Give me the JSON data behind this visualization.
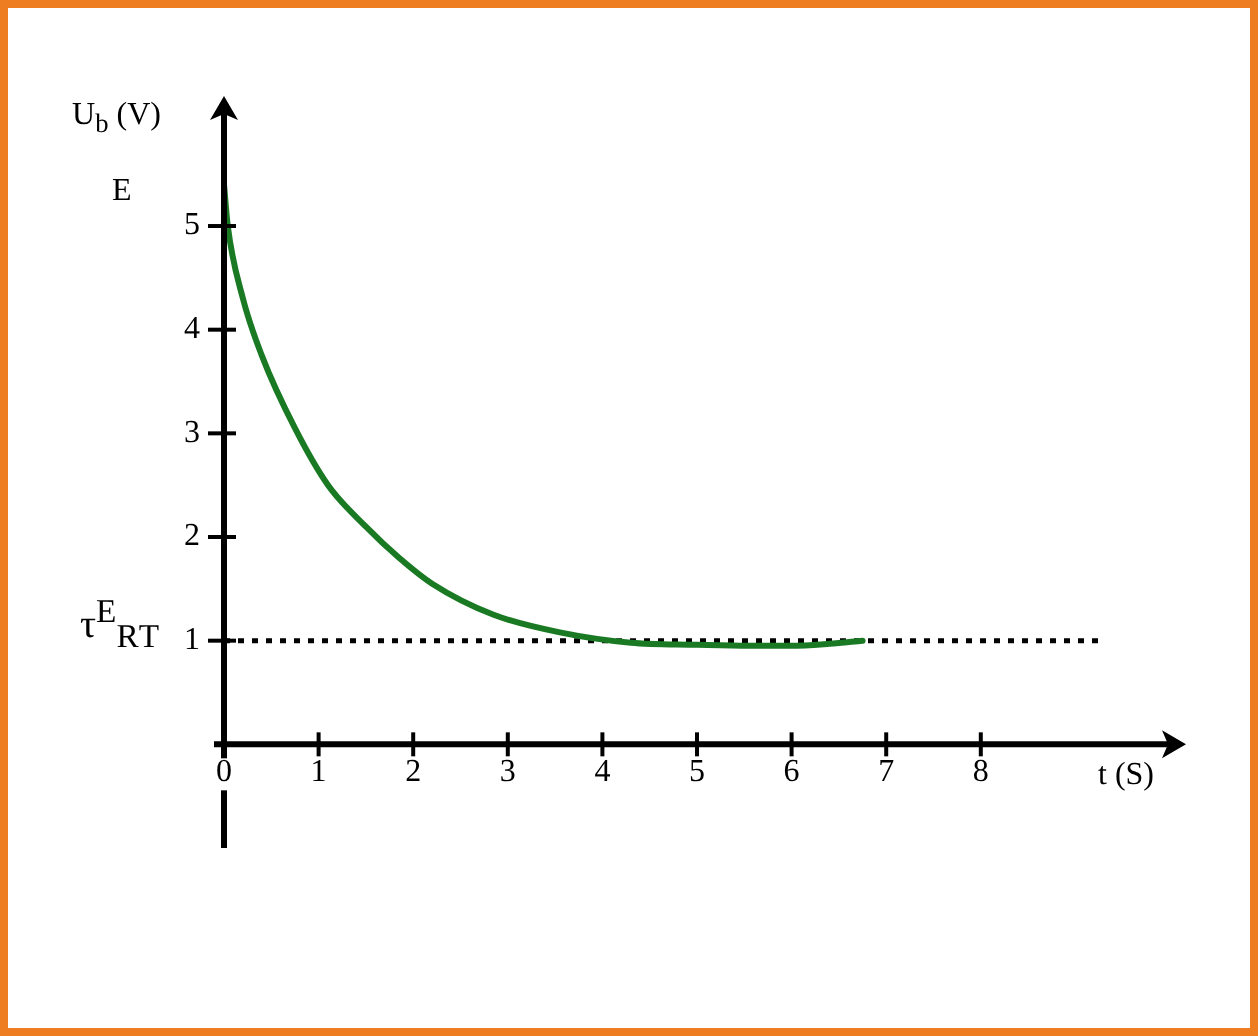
{
  "chart_data": {
    "type": "line",
    "ylabel": "U$_{b}$ (V)",
    "xlabel": "t (S)",
    "annotations": [
      "E"
    ],
    "x": [
      0,
      0.04,
      0.2,
      0.4,
      0.75,
      1.1,
      1.5,
      1.85,
      2.2,
      2.85,
      3.55,
      4.3,
      5,
      5.55,
      6,
      6.4,
      6.75
    ],
    "series": [
      {
        "color": "#1a7a24",
        "values": [
          5.4,
          5.0,
          4.3,
          3.75,
          3.05,
          2.5,
          2.1,
          1.8,
          1.55,
          1.25,
          1.08,
          0.98,
          0.96,
          0.95,
          0.95,
          0.97,
          1.0
        ]
      }
    ],
    "xlim": [
      0,
      10
    ],
    "ylim": [
      -1,
      6.1
    ],
    "xticks": [
      0,
      1,
      2,
      3,
      4,
      5,
      6,
      7,
      8
    ],
    "yticks": [
      1,
      2,
      3,
      4,
      5
    ],
    "ref_lines": [
      {
        "axis": "y",
        "value": 1,
        "label": "τ$^{E}$$_{R}$$_{T}$",
        "color": "#000000",
        "line_style": "dotted"
      }
    ],
    "grid": false,
    "legend": false,
    "marker": "none",
    "line_style": "solid"
  }
}
